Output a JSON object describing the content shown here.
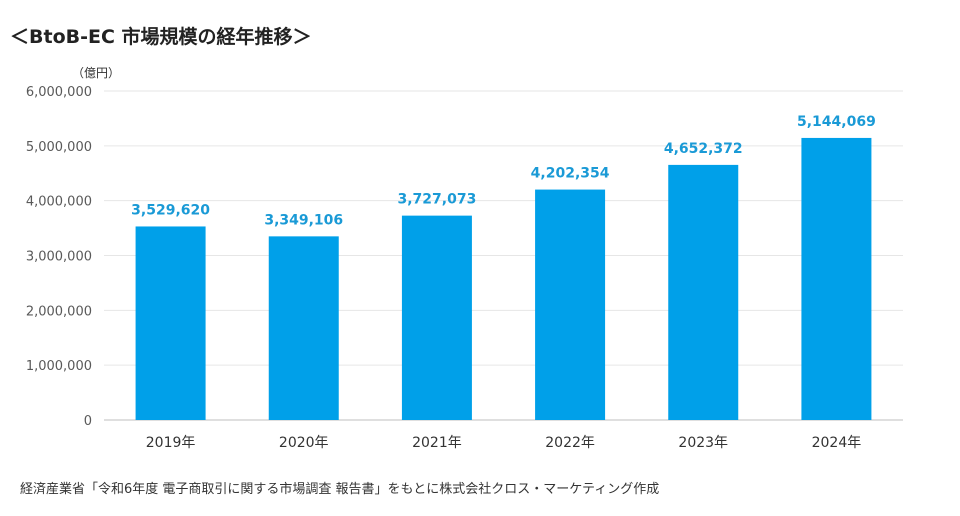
{
  "title": "＜BtoB-EC 市場規模の経年推移＞",
  "source_note": "経済産業省「令和6年度 電子商取引に関する市場調査 報告書」をもとに株式会社クロス・マーケティング作成",
  "colors": {
    "bar": "#00a0e9",
    "label": "#1a9ad6",
    "axis_text": "#595959",
    "grid": "#e6e6e6",
    "axis_line": "#bfbfbf"
  },
  "chart_data": {
    "type": "bar",
    "title": "＜BtoB-EC 市場規模の経年推移＞",
    "unit_label": "（億円）",
    "categories": [
      "2019年",
      "2020年",
      "2021年",
      "2022年",
      "2023年",
      "2024年"
    ],
    "values": [
      3529620,
      3349106,
      3727073,
      4202354,
      4652372,
      5144069
    ],
    "value_labels": [
      "3,529,620",
      "3,349,106",
      "3,727,073",
      "4,202,354",
      "4,652,372",
      "5,144,069"
    ],
    "ylim": [
      0,
      6000000
    ],
    "yticks": [
      0,
      1000000,
      2000000,
      3000000,
      4000000,
      5000000,
      6000000
    ],
    "ytick_labels": [
      "0",
      "1,000,000",
      "2,000,000",
      "3,000,000",
      "4,000,000",
      "5,000,000",
      "6,000,000"
    ],
    "grid": true,
    "legend": "none"
  }
}
